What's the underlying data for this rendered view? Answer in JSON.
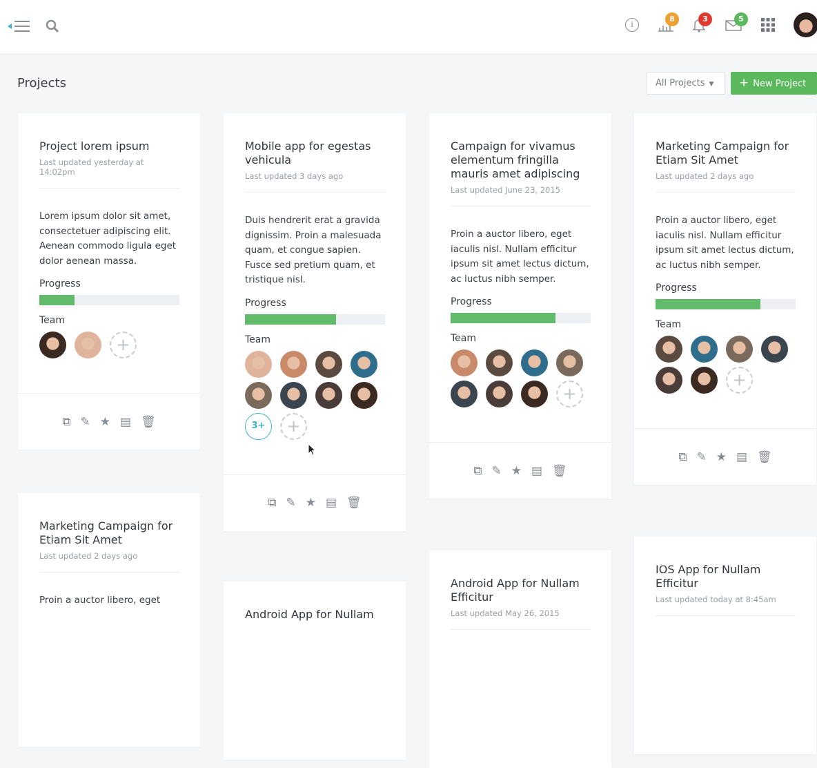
{
  "header": {
    "notifications": {
      "stats": "8",
      "alerts": "3",
      "messages": "5"
    },
    "colors": {
      "stats": "#f0a030",
      "alerts": "#e03a2e",
      "messages": "#5cb85c"
    }
  },
  "page": {
    "title": "Projects",
    "filter": "All Projects",
    "new_project": "New Project"
  },
  "labels": {
    "progress": "Progress",
    "team": "Team"
  },
  "cards": [
    {
      "title": "Project lorem ipsum",
      "updated": "Last updated yesterday at 14:02pm",
      "desc": "Lorem ipsum dolor sit amet, consectetuer adipiscing elit. Aenean commodo ligula eget dolor aenean massa.",
      "progress": 25,
      "team_count": 2
    },
    {
      "title": "Mobile app for egestas vehicula",
      "updated": "Last updated 3 days ago",
      "desc": "Duis hendrerit erat a gravida dignissim. Proin a malesuada quam, et congue sapien. Fusce sed pretium quam, et tristique nisl.",
      "progress": 65,
      "team_count": 8,
      "more": "3+"
    },
    {
      "title": "Campaign for vivamus elementum fringilla mauris amet adipiscing",
      "updated": "Last updated June 23, 2015",
      "desc": "Proin a auctor libero, eget iaculis nisl. Nullam efficitur ipsum sit amet lectus dictum, ac luctus nibh semper.",
      "progress": 75,
      "team_count": 7
    },
    {
      "title": "Marketing Campaign for Etiam Sit Amet",
      "updated": "Last updated 2 days ago",
      "desc": "Proin a auctor libero, eget iaculis nisl. Nullam efficitur ipsum sit amet lectus dictum, ac luctus nibh semper.",
      "progress": 75,
      "team_count": 6
    },
    {
      "title": "Marketing Campaign for Etiam Sit Amet",
      "updated": "Last updated 2 days ago",
      "desc": "Proin a auctor libero, eget"
    },
    {
      "title": "Android App for Nullam"
    },
    {
      "title": "Android App for Nullam Efficitur",
      "updated": "Last updated May 26, 2015"
    },
    {
      "title": "IOS App for Nullam Efficitur",
      "updated": "Last updated today at 8:45am"
    }
  ]
}
